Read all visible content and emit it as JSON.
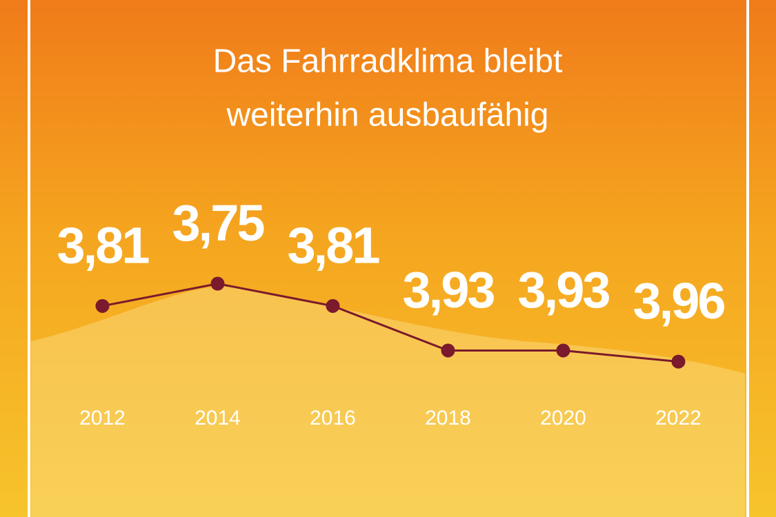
{
  "chart_data": {
    "type": "line",
    "title": [
      "Das Fahrradklima bleibt",
      "weiterhin ausbaufähig"
    ],
    "categories": [
      "2012",
      "2014",
      "2016",
      "2018",
      "2020",
      "2022"
    ],
    "values": [
      3.81,
      3.75,
      3.81,
      3.93,
      3.93,
      3.96
    ],
    "value_labels": [
      "3,81",
      "3,75",
      "3,81",
      "3,93",
      "3,93",
      "3,96"
    ],
    "color": "#7a1a2c",
    "ylim": [
      3.45,
      4.1
    ],
    "y_inverted": true
  }
}
